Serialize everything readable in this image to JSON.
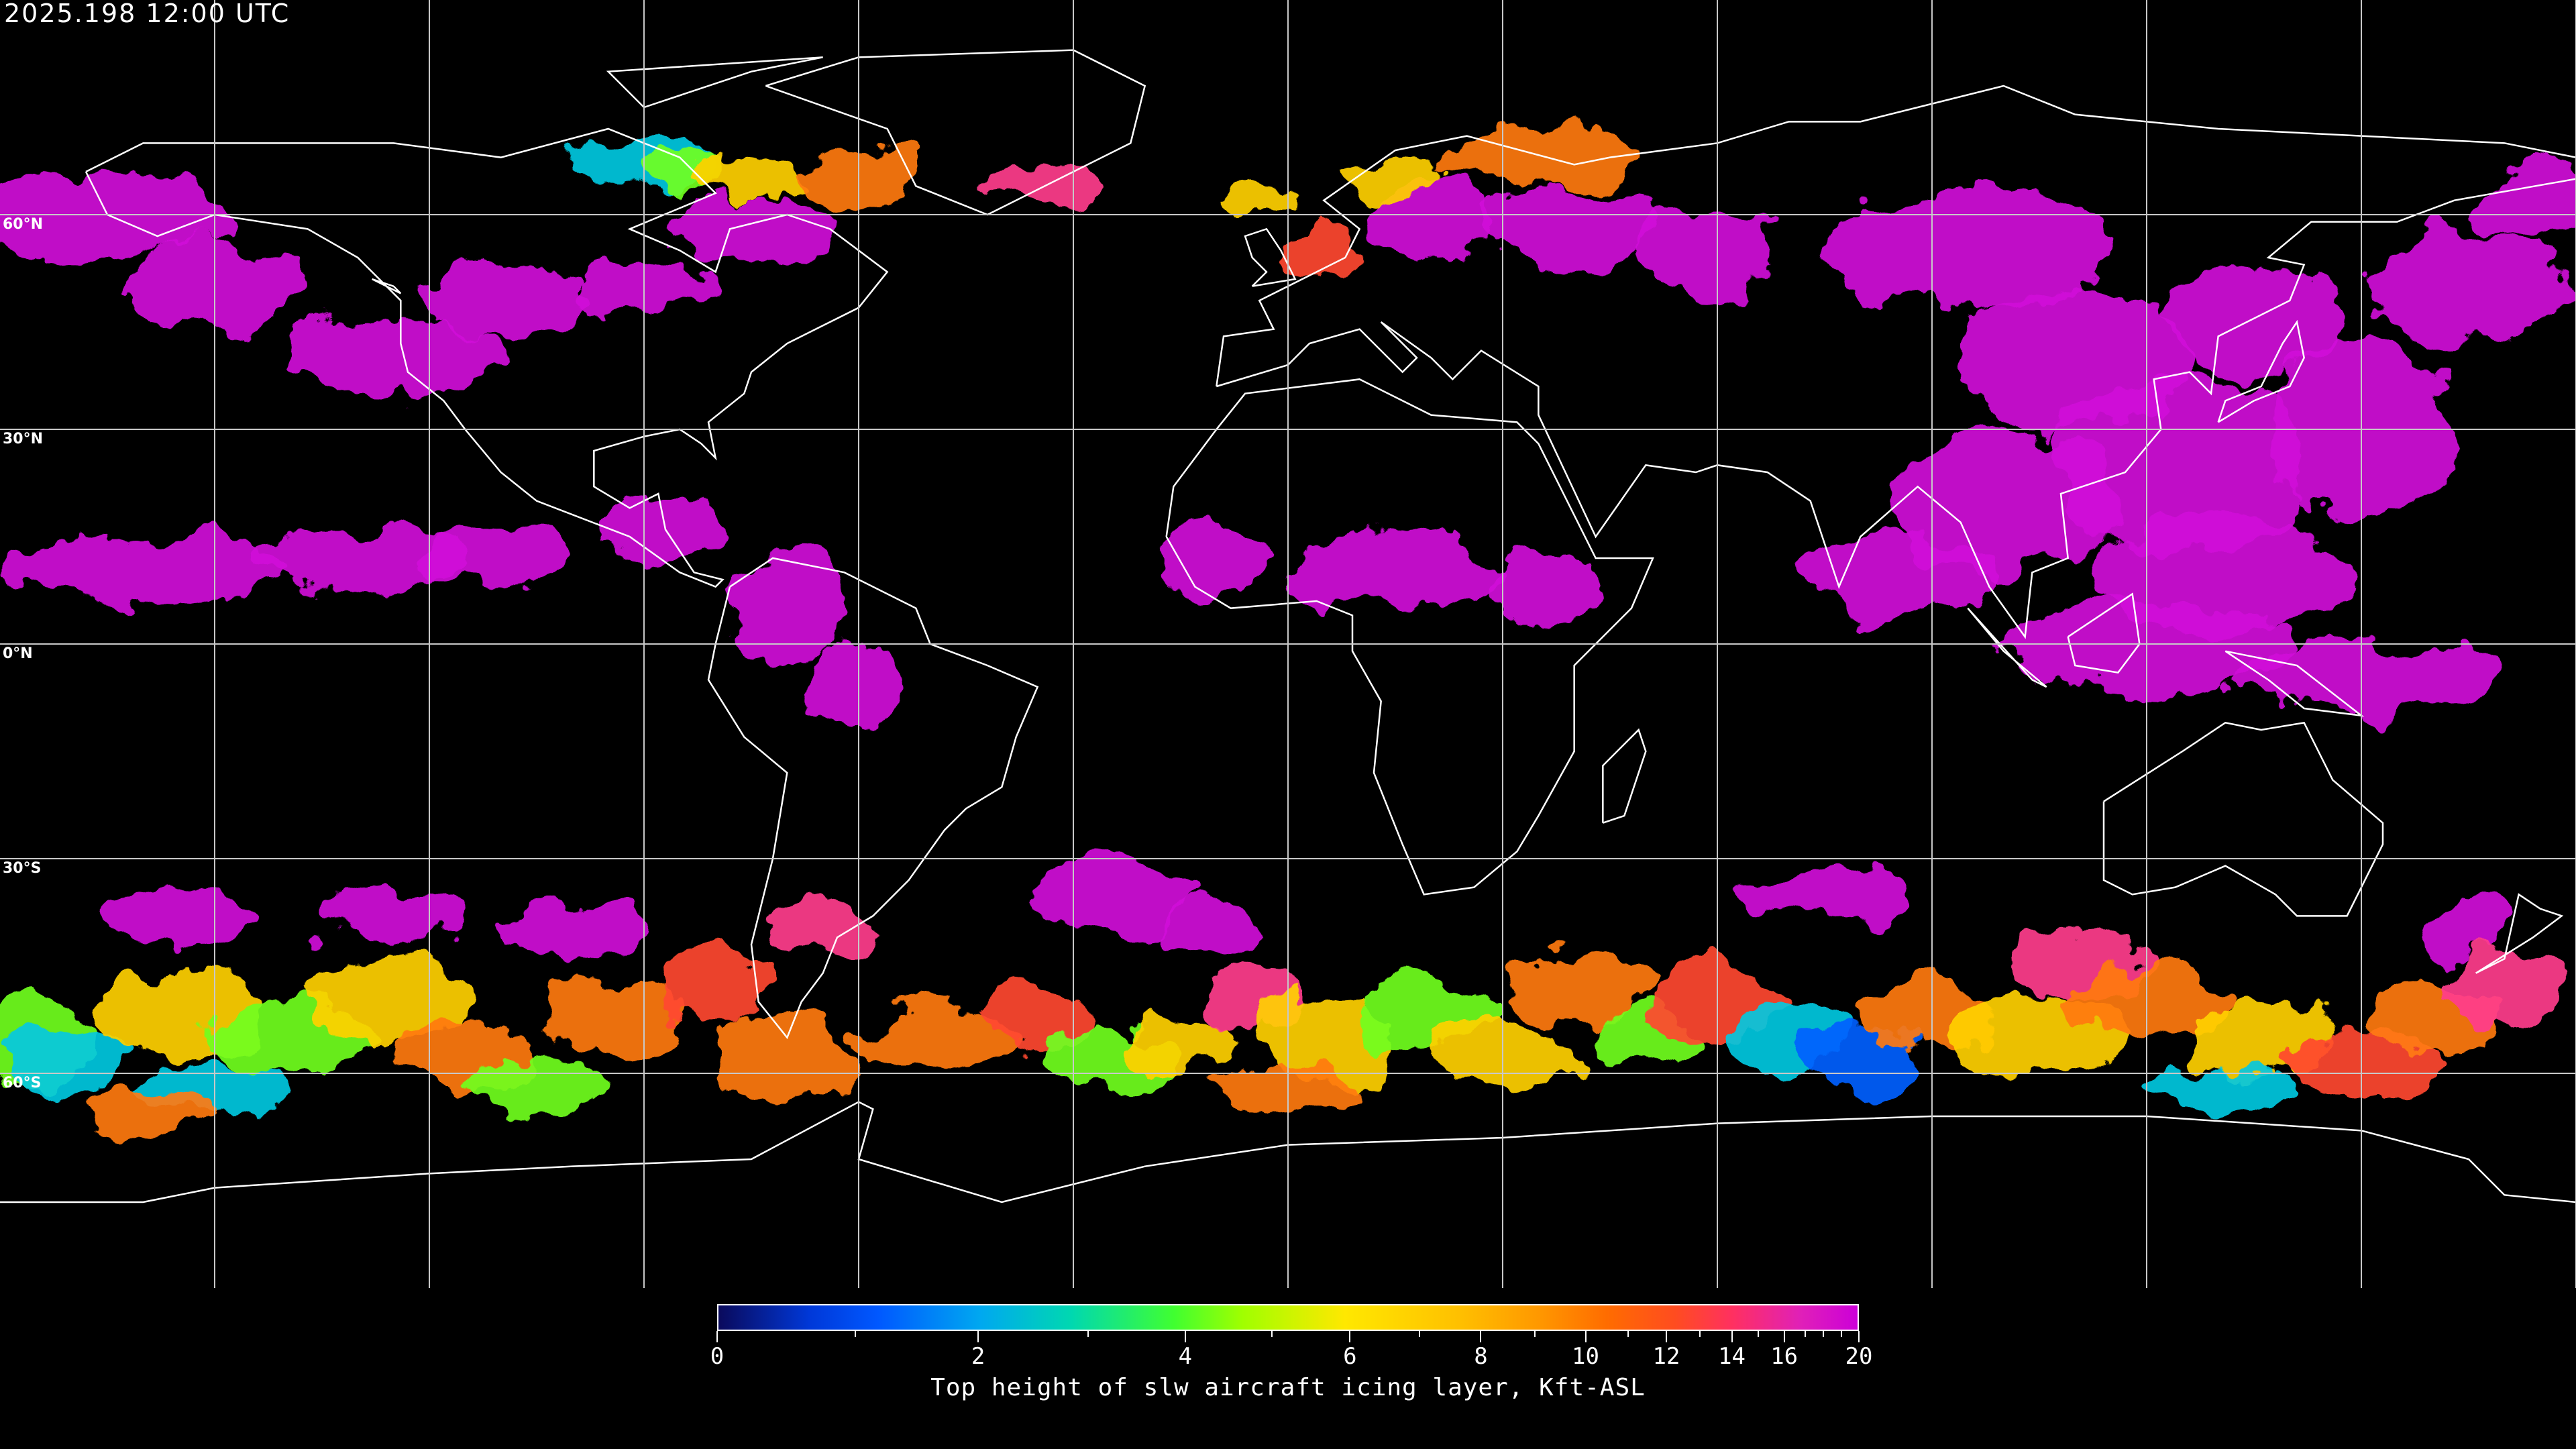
{
  "header": {
    "timestamp": "2025.198 12:00 UTC"
  },
  "map": {
    "projection": "equirectangular",
    "gridline_color": "#c8c8c8",
    "coastline_color": "#ffffff",
    "lat_labels": [
      "60°N",
      "30°N",
      "0°N",
      "30°S",
      "60°S"
    ]
  },
  "colorbar": {
    "title": "Top height of slw aircraft icing layer, Kft-ASL",
    "range": [
      0,
      20
    ],
    "tick_labels": [
      "0",
      "2",
      "4",
      "6",
      "8",
      "10",
      "12",
      "14",
      "16",
      "20"
    ],
    "colors": {
      "low": "#0a0a5c",
      "mid": "#ffe800",
      "high": "#cc00d8"
    }
  }
}
